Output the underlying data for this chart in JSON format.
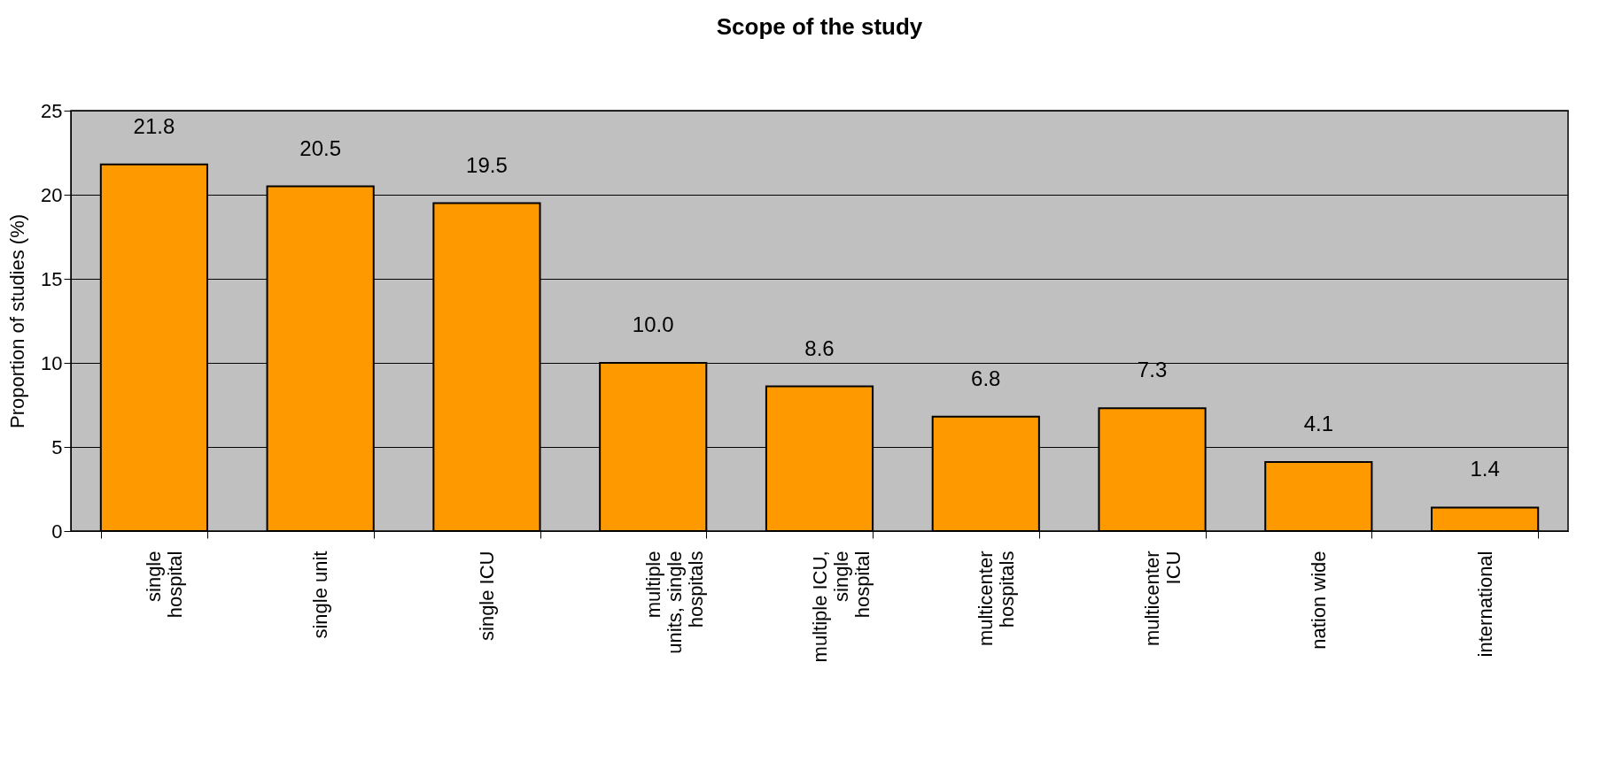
{
  "chart_data": {
    "type": "bar",
    "title": "Scope of the study",
    "ylabel": "Proportion of studies (%)",
    "categories": [
      "single hospital",
      "single unit",
      "single ICU",
      "multiple units, single hospitals",
      "multiple ICU, single hospital",
      "multicenter hospitals",
      "multicenter ICU",
      "nation wide",
      "international"
    ],
    "values": [
      21.8,
      20.5,
      19.5,
      10.0,
      8.6,
      6.8,
      7.3,
      4.1,
      1.4
    ],
    "value_labels": [
      "21.8",
      "20.5",
      "19.5",
      "10.0",
      "8.6",
      "6.8",
      "7.3",
      "4.1",
      "1.4"
    ],
    "color": "#ff9900",
    "ylim": [
      0,
      25
    ],
    "yticks": [
      0,
      5,
      10,
      15,
      20,
      25
    ],
    "grid": "y"
  }
}
